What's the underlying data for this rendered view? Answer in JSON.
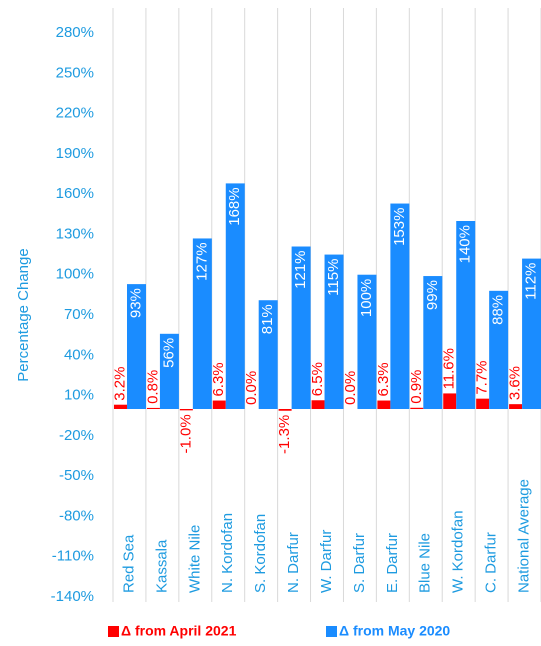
{
  "chart_data": {
    "type": "bar",
    "y_label": "Percentage Change",
    "categories": [
      "Red Sea",
      "Kassala",
      "White Nile",
      "N. Kordofan",
      "S. Kordofan",
      "N. Darfur",
      "W. Darfur",
      "S. Darfur",
      "E. Darfur",
      "Blue Nile",
      "W. Kordofan",
      "C. Darfur",
      "National Average"
    ],
    "series": [
      {
        "name": "Δ from April 2021",
        "color": "#ff0000",
        "values": [
          3.2,
          0.8,
          -1.0,
          6.3,
          0.0,
          -1.3,
          6.5,
          0.0,
          6.3,
          0.9,
          11.6,
          7.7,
          3.6
        ],
        "value_labels": [
          "3.2%",
          "0.8%",
          "-1.0%",
          "6.3%",
          "0.0%",
          "-1.3%",
          "6.5%",
          "0.0%",
          "6.3%",
          "0.9%",
          "11.6%",
          "7.7%",
          "3.6%"
        ]
      },
      {
        "name": "Δ from May 2020",
        "color": "#1a8cff",
        "values": [
          93,
          56,
          127,
          168,
          81,
          121,
          115,
          100,
          153,
          99,
          140,
          88,
          112
        ],
        "value_labels": [
          "93%",
          "56%",
          "127%",
          "168%",
          "81%",
          "121%",
          "115%",
          "100%",
          "153%",
          "99%",
          "140%",
          "88%",
          "112%"
        ]
      }
    ],
    "ylim": [
      -140,
      280
    ],
    "yticks": [
      {
        "value": -140,
        "label": "-140%"
      },
      {
        "value": -110,
        "label": "-110%"
      },
      {
        "value": -80,
        "label": "-80%"
      },
      {
        "value": -50,
        "label": "-50%"
      },
      {
        "value": -20,
        "label": "-20%"
      },
      {
        "value": 10,
        "label": "10%"
      },
      {
        "value": 40,
        "label": "40%"
      },
      {
        "value": 70,
        "label": "70%"
      },
      {
        "value": 100,
        "label": "100%"
      },
      {
        "value": 130,
        "label": "130%"
      },
      {
        "value": 160,
        "label": "160%"
      },
      {
        "value": 190,
        "label": "190%"
      },
      {
        "value": 220,
        "label": "220%"
      },
      {
        "value": 250,
        "label": "250%"
      },
      {
        "value": 280,
        "label": "280%"
      }
    ],
    "grid": true,
    "legend": "bottom"
  }
}
